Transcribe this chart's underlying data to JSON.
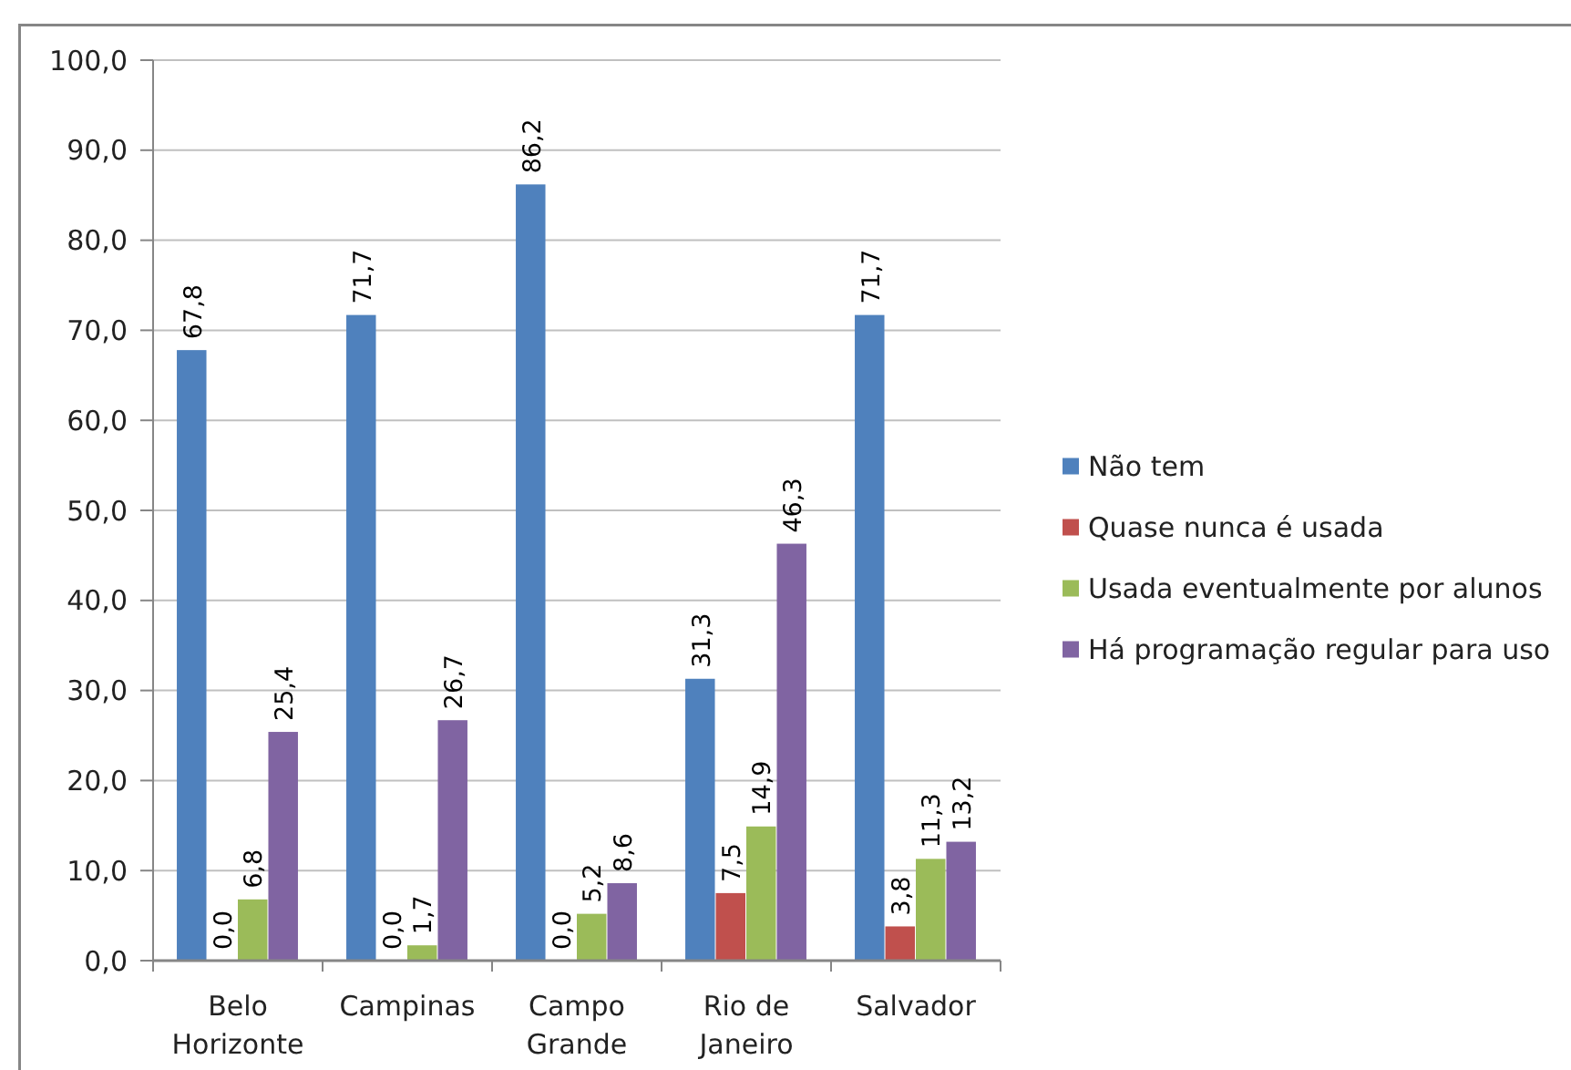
{
  "chart_data": {
    "type": "bar",
    "categories": [
      "Belo Horizonte",
      "Campinas",
      "Campo Grande",
      "Rio de Janeiro",
      "Salvador"
    ],
    "series": [
      {
        "name": "Não tem",
        "color": "#4f81bd",
        "values": [
          67.8,
          71.7,
          86.2,
          31.3,
          71.7
        ],
        "value_labels": [
          "67,8",
          "71,7",
          "86,2",
          "31,3",
          "71,7"
        ]
      },
      {
        "name": "Quase nunca é usada",
        "color": "#c0504d",
        "values": [
          0.0,
          0.0,
          0.0,
          7.5,
          3.8
        ],
        "value_labels": [
          "0,0",
          "0,0",
          "0,0",
          "7,5",
          "3,8"
        ]
      },
      {
        "name": "Usada eventualmente por alunos",
        "color": "#9bbb59",
        "values": [
          6.8,
          1.7,
          5.2,
          14.9,
          11.3
        ],
        "value_labels": [
          "6,8",
          "1,7",
          "5,2",
          "14,9",
          "11,3"
        ]
      },
      {
        "name": "Há programação regular para uso",
        "color": "#8064a2",
        "values": [
          25.4,
          26.7,
          8.6,
          46.3,
          13.2
        ],
        "value_labels": [
          "25,4",
          "26,7",
          "8,6",
          "46,3",
          "13,2"
        ]
      }
    ],
    "ylim": [
      0,
      100
    ],
    "yticks": [
      {
        "value": 0,
        "label": "0,0"
      },
      {
        "value": 10,
        "label": "10,0"
      },
      {
        "value": 20,
        "label": "20,0"
      },
      {
        "value": 30,
        "label": "30,0"
      },
      {
        "value": 40,
        "label": "40,0"
      },
      {
        "value": 50,
        "label": "50,0"
      },
      {
        "value": 60,
        "label": "60,0"
      },
      {
        "value": 70,
        "label": "70,0"
      },
      {
        "value": 80,
        "label": "80,0"
      },
      {
        "value": 90,
        "label": "90,0"
      },
      {
        "value": 100,
        "label": "100,0"
      }
    ],
    "grid": "y",
    "legend": "right"
  }
}
